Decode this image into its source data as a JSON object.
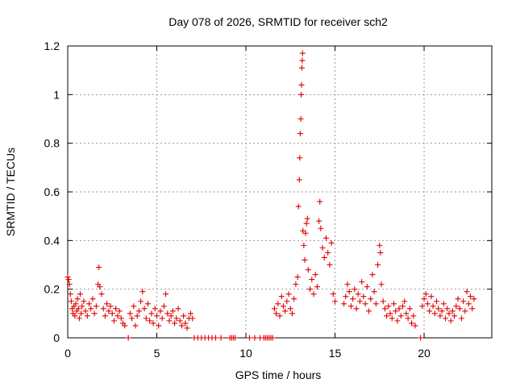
{
  "chart_data": {
    "type": "scatter",
    "title": "Day 078 of 2026, SRMTID for receiver sch2",
    "xlabel": "GPS time / hours",
    "ylabel": "SRMTID / TECUs",
    "xlim": [
      0,
      23.8
    ],
    "ylim": [
      0,
      1.2
    ],
    "x_ticks": [
      0,
      5,
      10,
      15,
      20
    ],
    "x_tick_labels": [
      "0",
      "5",
      "10",
      "15",
      "20"
    ],
    "y_ticks": [
      0,
      0.2,
      0.4,
      0.6,
      0.8,
      1.0,
      1.2
    ],
    "y_tick_labels": [
      "0",
      "0.2",
      "0.4",
      "0.6",
      "0.8",
      "1",
      "1.2"
    ],
    "grid": true,
    "marker": "+",
    "color": "#e00000",
    "series": [
      {
        "name": "sch2",
        "points": [
          [
            0.0,
            0.25
          ],
          [
            0.05,
            0.24
          ],
          [
            0.1,
            0.22
          ],
          [
            0.15,
            0.18
          ],
          [
            0.2,
            0.15
          ],
          [
            0.25,
            0.12
          ],
          [
            0.3,
            0.1
          ],
          [
            0.35,
            0.13
          ],
          [
            0.4,
            0.09
          ],
          [
            0.45,
            0.14
          ],
          [
            0.5,
            0.11
          ],
          [
            0.55,
            0.16
          ],
          [
            0.6,
            0.12
          ],
          [
            0.65,
            0.08
          ],
          [
            0.7,
            0.18
          ],
          [
            0.75,
            0.1
          ],
          [
            0.8,
            0.13
          ],
          [
            0.9,
            0.15
          ],
          [
            1.0,
            0.11
          ],
          [
            1.1,
            0.09
          ],
          [
            1.2,
            0.14
          ],
          [
            1.3,
            0.12
          ],
          [
            1.4,
            0.16
          ],
          [
            1.5,
            0.1
          ],
          [
            1.6,
            0.13
          ],
          [
            1.7,
            0.22
          ],
          [
            1.75,
            0.29
          ],
          [
            1.8,
            0.21
          ],
          [
            1.9,
            0.18
          ],
          [
            2.0,
            0.12
          ],
          [
            2.1,
            0.09
          ],
          [
            2.2,
            0.14
          ],
          [
            2.3,
            0.11
          ],
          [
            2.4,
            0.13
          ],
          [
            2.5,
            0.1
          ],
          [
            2.6,
            0.07
          ],
          [
            2.7,
            0.12
          ],
          [
            2.8,
            0.09
          ],
          [
            2.9,
            0.11
          ],
          [
            3.0,
            0.08
          ],
          [
            3.1,
            0.06
          ],
          [
            3.2,
            0.05
          ],
          [
            3.4,
            0.0
          ],
          [
            3.5,
            0.1
          ],
          [
            3.6,
            0.08
          ],
          [
            3.7,
            0.13
          ],
          [
            3.8,
            0.05
          ],
          [
            3.9,
            0.09
          ],
          [
            4.0,
            0.11
          ],
          [
            4.1,
            0.15
          ],
          [
            4.2,
            0.19
          ],
          [
            4.3,
            0.12
          ],
          [
            4.4,
            0.08
          ],
          [
            4.5,
            0.14
          ],
          [
            4.6,
            0.07
          ],
          [
            4.7,
            0.1
          ],
          [
            4.8,
            0.06
          ],
          [
            4.9,
            0.12
          ],
          [
            5.0,
            0.09
          ],
          [
            5.1,
            0.05
          ],
          [
            5.2,
            0.11
          ],
          [
            5.3,
            0.08
          ],
          [
            5.4,
            0.13
          ],
          [
            5.5,
            0.18
          ],
          [
            5.6,
            0.1
          ],
          [
            5.7,
            0.07
          ],
          [
            5.8,
            0.09
          ],
          [
            5.9,
            0.11
          ],
          [
            6.0,
            0.06
          ],
          [
            6.1,
            0.08
          ],
          [
            6.2,
            0.12
          ],
          [
            6.3,
            0.07
          ],
          [
            6.4,
            0.05
          ],
          [
            6.5,
            0.09
          ],
          [
            6.6,
            0.06
          ],
          [
            6.7,
            0.04
          ],
          [
            6.8,
            0.08
          ],
          [
            6.9,
            0.1
          ],
          [
            7.0,
            0.08
          ],
          [
            7.1,
            0.0
          ],
          [
            7.3,
            0.0
          ],
          [
            7.5,
            0.0
          ],
          [
            7.7,
            0.0
          ],
          [
            7.9,
            0.0
          ],
          [
            8.1,
            0.0
          ],
          [
            8.3,
            0.0
          ],
          [
            8.6,
            0.0
          ],
          [
            9.1,
            0.0
          ],
          [
            9.2,
            0.0
          ],
          [
            9.3,
            0.0
          ],
          [
            9.4,
            0.0
          ],
          [
            10.2,
            0.0
          ],
          [
            10.5,
            0.0
          ],
          [
            10.8,
            0.0
          ],
          [
            11.0,
            0.0
          ],
          [
            11.1,
            0.0
          ],
          [
            11.2,
            0.0
          ],
          [
            11.3,
            0.0
          ],
          [
            11.4,
            0.0
          ],
          [
            11.5,
            0.0
          ],
          [
            11.6,
            0.12
          ],
          [
            11.7,
            0.1
          ],
          [
            11.8,
            0.14
          ],
          [
            11.9,
            0.09
          ],
          [
            12.0,
            0.17
          ],
          [
            12.1,
            0.13
          ],
          [
            12.2,
            0.11
          ],
          [
            12.3,
            0.15
          ],
          [
            12.4,
            0.18
          ],
          [
            12.5,
            0.12
          ],
          [
            12.6,
            0.1
          ],
          [
            12.7,
            0.16
          ],
          [
            12.8,
            0.22
          ],
          [
            12.9,
            0.25
          ],
          [
            12.95,
            0.54
          ],
          [
            13.0,
            0.65
          ],
          [
            13.02,
            0.74
          ],
          [
            13.05,
            0.84
          ],
          [
            13.08,
            0.9
          ],
          [
            13.1,
            1.0
          ],
          [
            13.12,
            1.04
          ],
          [
            13.14,
            1.11
          ],
          [
            13.16,
            1.14
          ],
          [
            13.18,
            1.17
          ],
          [
            13.2,
            0.44
          ],
          [
            13.25,
            0.38
          ],
          [
            13.3,
            0.32
          ],
          [
            13.35,
            0.43
          ],
          [
            13.4,
            0.47
          ],
          [
            13.45,
            0.49
          ],
          [
            13.5,
            0.28
          ],
          [
            13.6,
            0.2
          ],
          [
            13.7,
            0.24
          ],
          [
            13.8,
            0.18
          ],
          [
            13.9,
            0.26
          ],
          [
            14.0,
            0.21
          ],
          [
            14.1,
            0.48
          ],
          [
            14.15,
            0.56
          ],
          [
            14.2,
            0.45
          ],
          [
            14.3,
            0.37
          ],
          [
            14.4,
            0.33
          ],
          [
            14.5,
            0.41
          ],
          [
            14.6,
            0.35
          ],
          [
            14.7,
            0.3
          ],
          [
            14.8,
            0.39
          ],
          [
            14.9,
            0.18
          ],
          [
            15.0,
            0.15
          ],
          [
            15.5,
            0.14
          ],
          [
            15.6,
            0.17
          ],
          [
            15.7,
            0.22
          ],
          [
            15.8,
            0.19
          ],
          [
            15.9,
            0.13
          ],
          [
            16.0,
            0.16
          ],
          [
            16.1,
            0.2
          ],
          [
            16.2,
            0.12
          ],
          [
            16.3,
            0.18
          ],
          [
            16.4,
            0.15
          ],
          [
            16.5,
            0.23
          ],
          [
            16.6,
            0.17
          ],
          [
            16.7,
            0.14
          ],
          [
            16.8,
            0.21
          ],
          [
            16.9,
            0.11
          ],
          [
            17.0,
            0.16
          ],
          [
            17.1,
            0.26
          ],
          [
            17.2,
            0.19
          ],
          [
            17.3,
            0.14
          ],
          [
            17.4,
            0.3
          ],
          [
            17.5,
            0.38
          ],
          [
            17.55,
            0.35
          ],
          [
            17.6,
            0.22
          ],
          [
            17.7,
            0.15
          ],
          [
            17.8,
            0.12
          ],
          [
            17.9,
            0.09
          ],
          [
            18.0,
            0.13
          ],
          [
            18.1,
            0.1
          ],
          [
            18.2,
            0.08
          ],
          [
            18.3,
            0.14
          ],
          [
            18.4,
            0.11
          ],
          [
            18.5,
            0.07
          ],
          [
            18.6,
            0.12
          ],
          [
            18.7,
            0.09
          ],
          [
            18.8,
            0.13
          ],
          [
            18.9,
            0.15
          ],
          [
            19.0,
            0.1
          ],
          [
            19.1,
            0.08
          ],
          [
            19.2,
            0.12
          ],
          [
            19.3,
            0.06
          ],
          [
            19.4,
            0.09
          ],
          [
            19.5,
            0.05
          ],
          [
            19.8,
            0.0
          ],
          [
            19.9,
            0.13
          ],
          [
            20.0,
            0.16
          ],
          [
            20.1,
            0.18
          ],
          [
            20.2,
            0.14
          ],
          [
            20.3,
            0.11
          ],
          [
            20.4,
            0.17
          ],
          [
            20.5,
            0.13
          ],
          [
            20.6,
            0.1
          ],
          [
            20.7,
            0.15
          ],
          [
            20.8,
            0.12
          ],
          [
            20.9,
            0.09
          ],
          [
            21.0,
            0.11
          ],
          [
            21.1,
            0.14
          ],
          [
            21.2,
            0.08
          ],
          [
            21.3,
            0.12
          ],
          [
            21.4,
            0.1
          ],
          [
            21.5,
            0.07
          ],
          [
            21.6,
            0.11
          ],
          [
            21.7,
            0.09
          ],
          [
            21.8,
            0.13
          ],
          [
            21.9,
            0.16
          ],
          [
            22.0,
            0.12
          ],
          [
            22.1,
            0.08
          ],
          [
            22.2,
            0.15
          ],
          [
            22.3,
            0.11
          ],
          [
            22.4,
            0.19
          ],
          [
            22.5,
            0.14
          ],
          [
            22.6,
            0.17
          ],
          [
            22.7,
            0.12
          ],
          [
            22.8,
            0.16
          ]
        ]
      }
    ]
  }
}
